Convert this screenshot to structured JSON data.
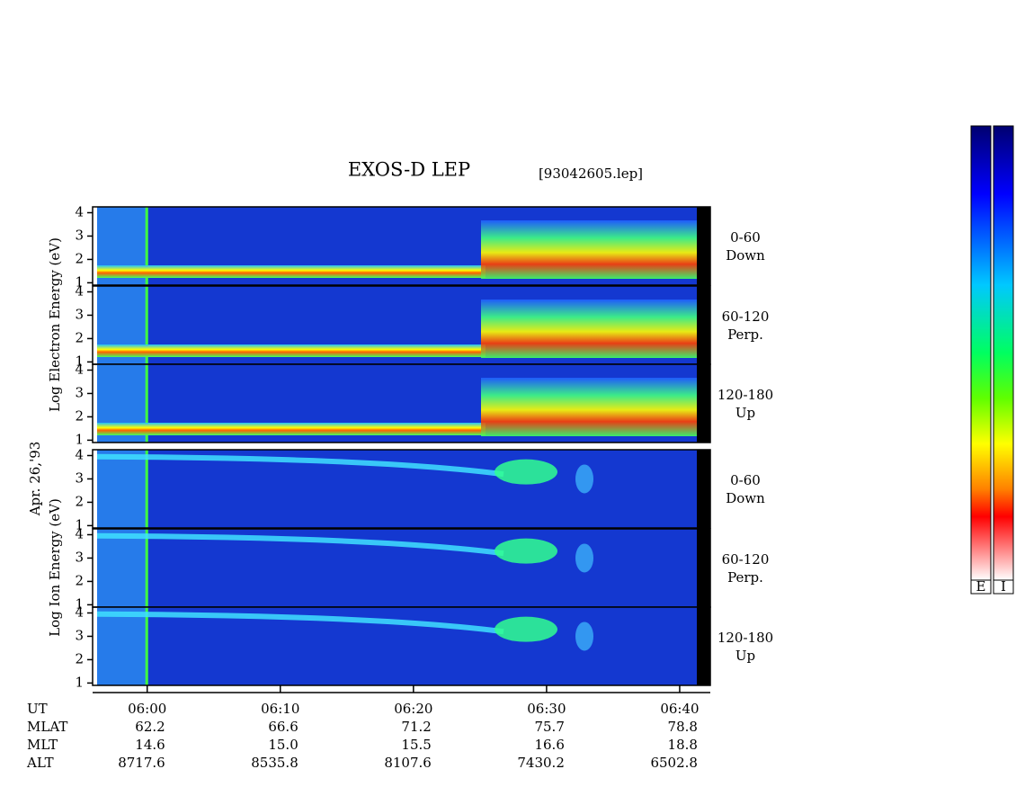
{
  "chart_data": {
    "type": "spectrogram",
    "title": "EXOS-D LEP",
    "file": "[93042605.lep]",
    "date": "Apr. 26,'93",
    "groups": [
      {
        "ylabel": "Log Electron Energy (eV)",
        "colorbar": "E"
      },
      {
        "ylabel": "Log Ion Energy (eV)",
        "colorbar": "I"
      }
    ],
    "panels": [
      {
        "group": 0,
        "angle": "0-60",
        "direction": "Down"
      },
      {
        "group": 0,
        "angle": "60-120",
        "direction": "Perp."
      },
      {
        "group": 0,
        "angle": "120-180",
        "direction": "Up"
      },
      {
        "group": 1,
        "angle": "0-60",
        "direction": "Down"
      },
      {
        "group": 1,
        "angle": "60-120",
        "direction": "Perp."
      },
      {
        "group": 1,
        "angle": "120-180",
        "direction": "Up"
      }
    ],
    "ylim": [
      0.9,
      4.25
    ],
    "yticks": [
      1,
      2,
      3,
      4
    ],
    "xlim": [
      355.9,
      402.3
    ],
    "xticks": [
      {
        "value": 360,
        "label": "06:00"
      },
      {
        "value": 370,
        "label": "06:10"
      },
      {
        "value": 380,
        "label": "06:20"
      },
      {
        "value": 390,
        "label": "06:30"
      },
      {
        "value": 400,
        "label": "06:40"
      }
    ],
    "orbit": [
      {
        "name": "UT"
      },
      {
        "name": "MLAT",
        "values": [
          "62.2",
          "66.6",
          "71.2",
          "75.7",
          "78.8"
        ]
      },
      {
        "name": "MLT",
        "values": [
          "14.6",
          "15.0",
          "15.5",
          "16.6",
          "18.8"
        ]
      },
      {
        "name": "ALT",
        "values": [
          "8717.6",
          "8535.8",
          "8107.6",
          "7430.2",
          "6502.8"
        ]
      }
    ]
  }
}
